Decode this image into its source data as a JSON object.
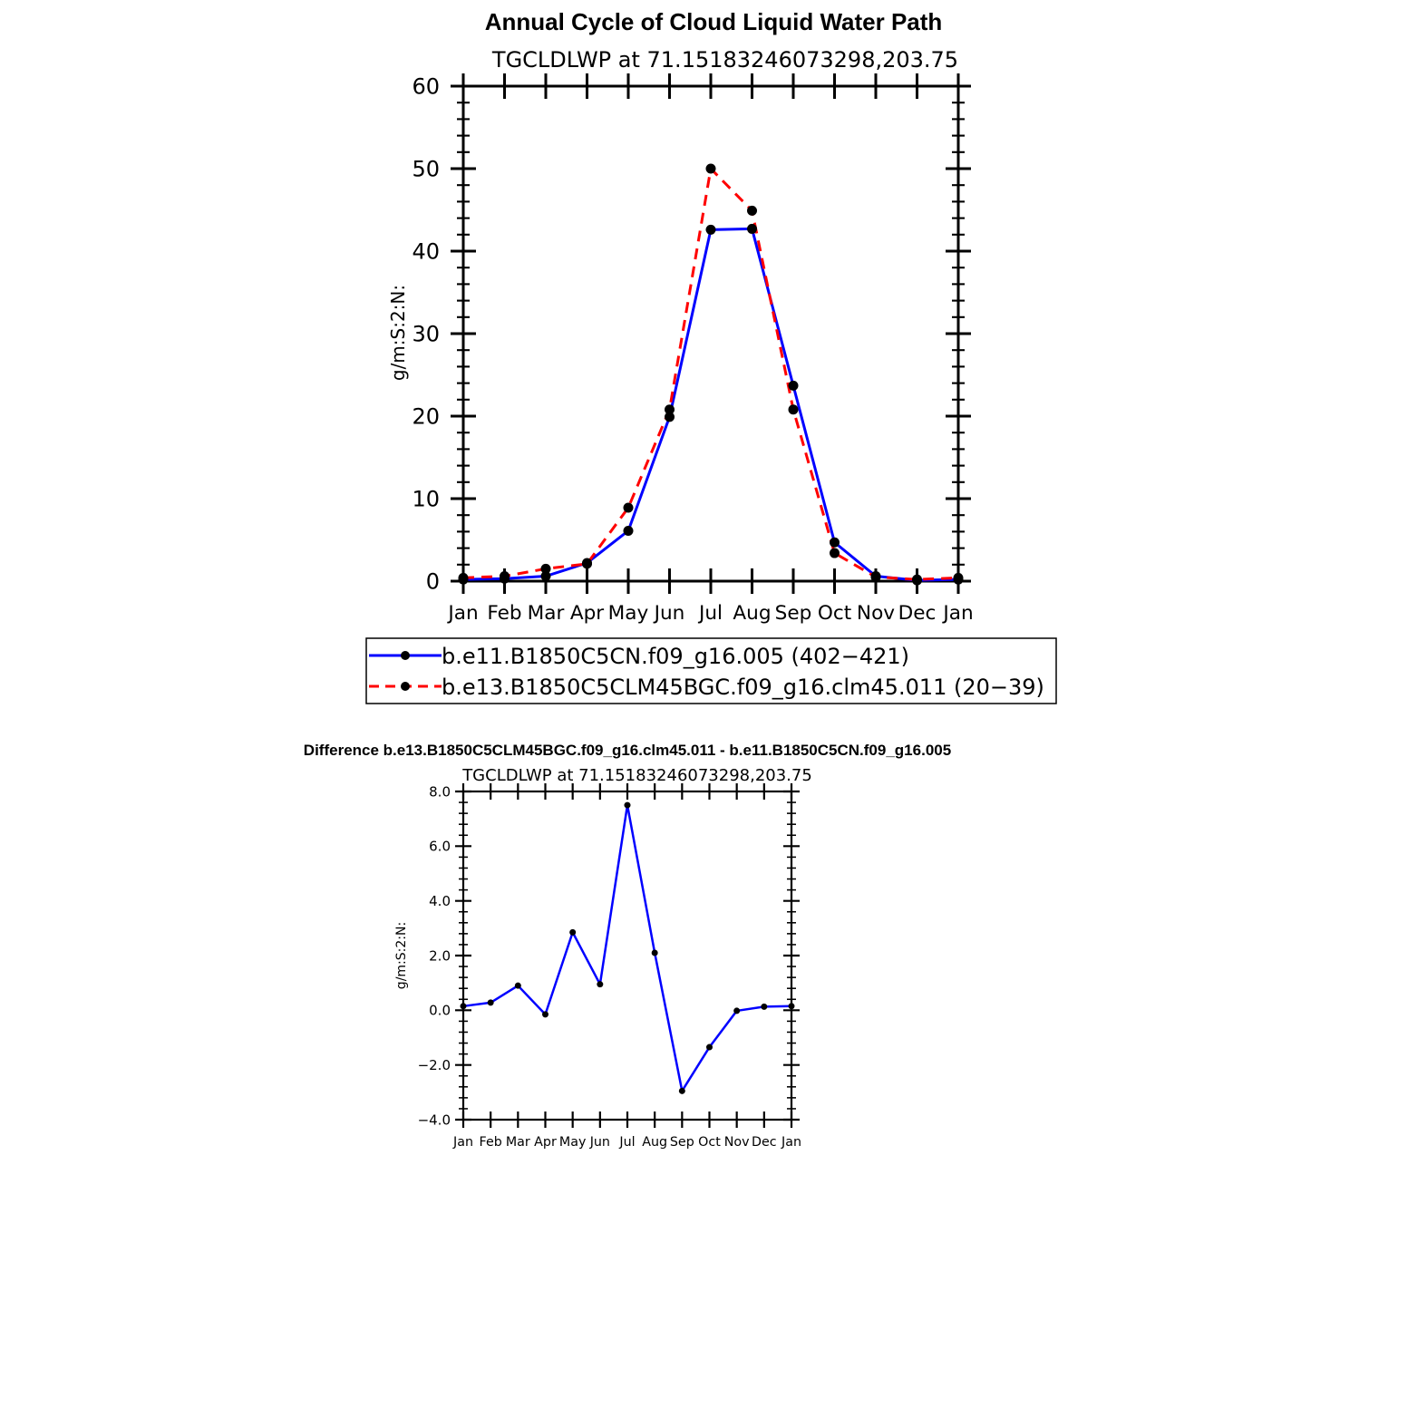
{
  "chart_data": [
    {
      "type": "line",
      "title": "Annual Cycle of Cloud Liquid Water Path",
      "subtitle": "TGCLDLWP  at  71.15183246073298,203.75",
      "ylabel": "g/m:S:2:N:",
      "xlabel": "",
      "ylim": [
        0,
        60
      ],
      "yticks": [
        "0",
        "10",
        "20",
        "30",
        "40",
        "50",
        "60"
      ],
      "categories": [
        "Jan",
        "Feb",
        "Mar",
        "Apr",
        "May",
        "Jun",
        "Jul",
        "Aug",
        "Sep",
        "Oct",
        "Nov",
        "Dec",
        "Jan"
      ],
      "legend_position": "bottom",
      "series": [
        {
          "name": "b.e11.B1850C5CN.f09_g16.005 (402−421)",
          "color": "#0000ff",
          "dash": "solid",
          "values": [
            0.2,
            0.3,
            0.6,
            2.2,
            6.1,
            19.9,
            42.6,
            42.7,
            23.7,
            4.7,
            0.6,
            0.1,
            0.2
          ]
        },
        {
          "name": "b.e13.B1850C5CLM45BGC.f09_g16.clm45.011 (20−39)",
          "color": "#ff0000",
          "dash": "dashed",
          "values": [
            0.4,
            0.6,
            1.5,
            2.1,
            8.9,
            20.8,
            50.0,
            44.9,
            20.8,
            3.4,
            0.5,
            0.2,
            0.4
          ]
        }
      ]
    },
    {
      "type": "line",
      "title": "Difference b.e13.B1850C5CLM45BGC.f09_g16.clm45.011 - b.e11.B1850C5CN.f09_g16.005",
      "subtitle": "TGCLDLWP  at  71.15183246073298,203.75",
      "ylabel": "g/m:S:2:N:",
      "xlabel": "",
      "ylim": [
        -4,
        8
      ],
      "yticks": [
        "−4.0",
        "−2.0",
        "0.0",
        "2.0",
        "4.0",
        "6.0",
        "8.0"
      ],
      "categories": [
        "Jan",
        "Feb",
        "Mar",
        "Apr",
        "May",
        "Jun",
        "Jul",
        "Aug",
        "Sep",
        "Oct",
        "Nov",
        "Dec",
        "Jan"
      ],
      "series": [
        {
          "color": "#0000ff",
          "dash": "solid",
          "values": [
            0.15,
            0.28,
            0.9,
            -0.15,
            2.85,
            0.95,
            7.5,
            2.1,
            -2.95,
            -1.35,
            -0.02,
            0.13,
            0.15
          ]
        }
      ]
    }
  ]
}
